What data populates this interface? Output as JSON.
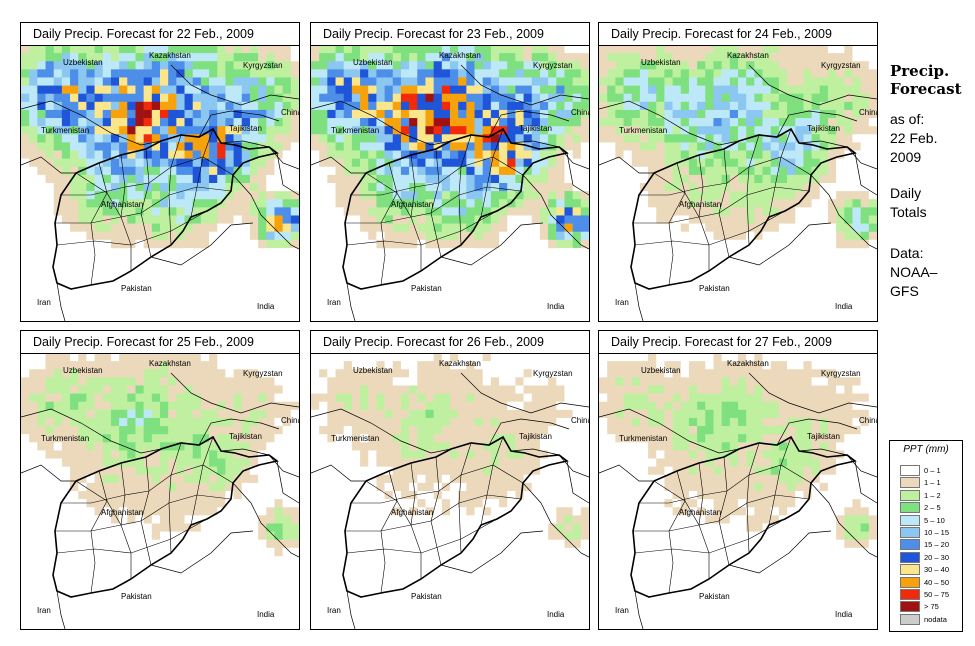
{
  "panels": [
    {
      "title": "Daily Precip. Forecast for  22 Feb., 2009",
      "intensity": 1.0
    },
    {
      "title": "Daily Precip. Forecast for  23 Feb., 2009",
      "intensity": 1.05
    },
    {
      "title": "Daily Precip. Forecast for  24 Feb., 2009",
      "intensity": 0.55
    },
    {
      "title": "Daily Precip. Forecast for  25 Feb., 2009",
      "intensity": 0.35
    },
    {
      "title": "Daily Precip. Forecast for  26 Feb., 2009",
      "intensity": 0.25
    },
    {
      "title": "Daily Precip. Forecast for  27 Feb., 2009",
      "intensity": 0.3
    }
  ],
  "country_labels": {
    "uzbekistan": "Uzbekistan",
    "kazakhstan": "Kazakhstan",
    "kyrgyzstan": "Kyrgyzstan",
    "turkmenistan": "Turkmenistan",
    "tajikistan": "Tajikistan",
    "china": "China",
    "afghanistan": "Afghanistan",
    "iran": "Iran",
    "pakistan": "Pakistan",
    "india": "India"
  },
  "sidebar": {
    "title_line1": "Precip.",
    "title_line2": "Forecast",
    "asof_line1": "as of:",
    "asof_line2": "22 Feb.",
    "asof_line3": "2009",
    "daily_line1": "Daily",
    "daily_line2": "Totals",
    "data_line1": "Data:",
    "data_line2": "NOAA–",
    "data_line3": "GFS"
  },
  "legend": {
    "title": "PPT (mm)",
    "items": [
      {
        "label": "0 – 1",
        "color": "#ffffff"
      },
      {
        "label": "1 – 1",
        "color": "#ecd9bb"
      },
      {
        "label": "1 – 2",
        "color": "#bff0a0"
      },
      {
        "label": "2 – 5",
        "color": "#7ee07e"
      },
      {
        "label": "5 – 10",
        "color": "#bde8f7"
      },
      {
        "label": "10 – 15",
        "color": "#8cc7f2"
      },
      {
        "label": "15 – 20",
        "color": "#4d8fe8"
      },
      {
        "label": "20 – 30",
        "color": "#1f55d9"
      },
      {
        "label": "30 – 40",
        "color": "#fbe68b"
      },
      {
        "label": "40 – 50",
        "color": "#f5a20c"
      },
      {
        "label": "50 – 75",
        "color": "#f02a0a"
      },
      {
        "label": "> 75",
        "color": "#a01212"
      },
      {
        "label": "nodata",
        "color": "#cccccc"
      }
    ]
  }
}
